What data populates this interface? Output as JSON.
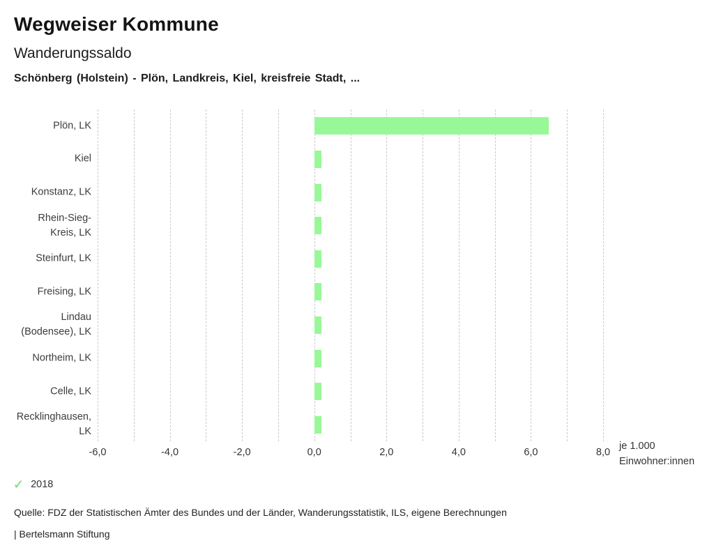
{
  "header": {
    "title": "Wegweiser Kommune",
    "indicator": "Wanderungssaldo",
    "regions": "Schönberg (Holstein) - Plön, Landkreis, Kiel, kreisfreie Stadt, ..."
  },
  "chart_data": {
    "type": "bar",
    "orientation": "horizontal",
    "title": "Wanderungssaldo",
    "categories": [
      "Plön, LK",
      "Kiel",
      "Konstanz, LK",
      "Rhein-Sieg-\nKreis, LK",
      "Steinfurt, LK",
      "Freising, LK",
      "Lindau\n(Bodensee), LK",
      "Northeim, LK",
      "Celle, LK",
      "Recklinghausen,\nLK"
    ],
    "values": [
      6.5,
      0.2,
      0.2,
      0.2,
      0.2,
      0.2,
      0.2,
      0.2,
      0.2,
      0.2
    ],
    "xlim": [
      -6,
      8
    ],
    "grid_step": 1,
    "grid": "dashed-vertical",
    "x_ticks": [
      {
        "v": -6,
        "label": "-6,0"
      },
      {
        "v": -4,
        "label": "-4,0"
      },
      {
        "v": -2,
        "label": "-2,0"
      },
      {
        "v": 0,
        "label": "0,0"
      },
      {
        "v": 2,
        "label": "2,0"
      },
      {
        "v": 4,
        "label": "4,0"
      },
      {
        "v": 6,
        "label": "6,0"
      },
      {
        "v": 8,
        "label": "8,0"
      }
    ],
    "unit_label_line1": "je 1.000",
    "unit_label_line2": "Einwohner:innen",
    "bar_color": "#98f898",
    "grid_color": "#c9c9c9",
    "legend_position": "bottom-left"
  },
  "legend": {
    "year": "2018",
    "check_icon": "check-icon",
    "check_color": "#8ee08e"
  },
  "footer": {
    "source": "Quelle: FDZ der Statistischen Ämter des Bundes und der Länder, Wanderungsstatistik, ILS, eigene Berechnungen",
    "branding": "| Bertelsmann Stiftung"
  }
}
